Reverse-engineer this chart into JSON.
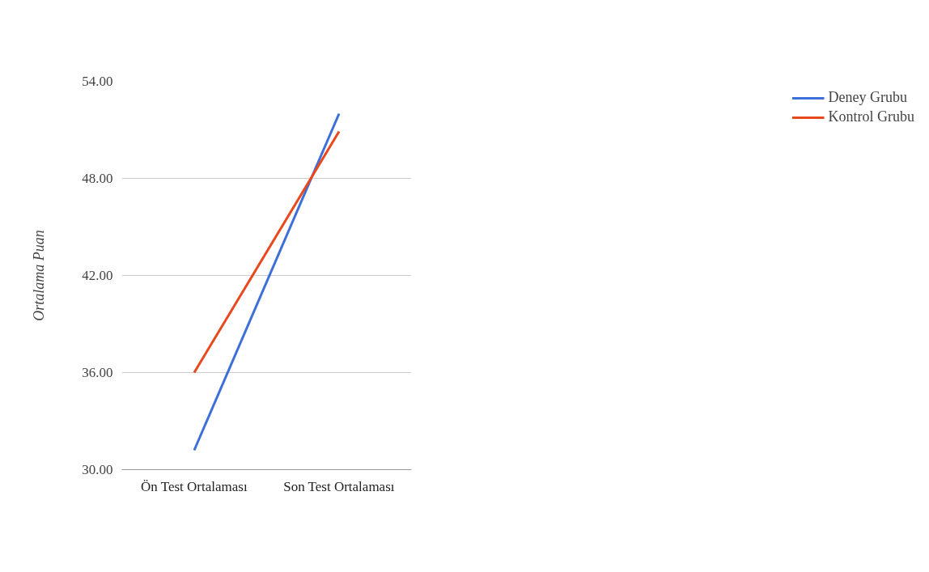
{
  "chart_data": {
    "type": "line",
    "ylabel": "Ortalama Puan",
    "categories": [
      "Ön Test Ortalaması",
      "Son Test Ortalaması"
    ],
    "series": [
      {
        "name": "Deney Grubu",
        "color": "#3c6fd8",
        "values": [
          31.2,
          52.0
        ]
      },
      {
        "name": "Kontrol Grubu",
        "color": "#e8481c",
        "values": [
          36.0,
          50.9
        ]
      }
    ],
    "ylim": [
      30,
      54
    ],
    "yticks": [
      {
        "value": 30,
        "label": "30.00"
      },
      {
        "value": 36,
        "label": "36.00"
      },
      {
        "value": 42,
        "label": "42.00"
      },
      {
        "value": 48,
        "label": "48.00"
      },
      {
        "value": 54,
        "label": "54.00"
      }
    ],
    "grid": "y",
    "legend": "right",
    "marker": "none",
    "line_style": "solid"
  }
}
